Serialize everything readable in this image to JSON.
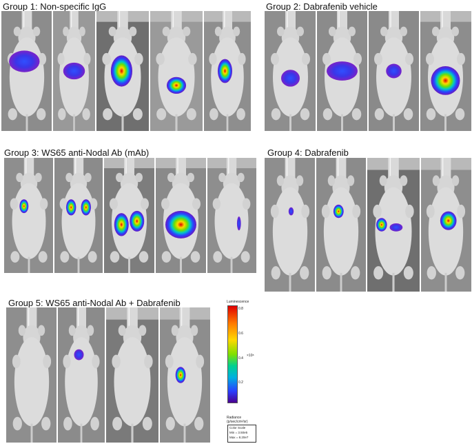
{
  "groups": [
    {
      "title": "Group 1: Non-specific IgG"
    },
    {
      "title": "Group 2: Dabrafenib vehicle"
    },
    {
      "title": "Group 3: WS65 anti-Nodal Ab (mAb)"
    },
    {
      "title": "Group 4: Dabrafenib"
    },
    {
      "title": "Group 5: WS65 anti-Nodal Ab + Dabrafenib"
    }
  ],
  "legend": {
    "title": "Luminescence",
    "ticks": [
      "0.8",
      "0.6",
      "0.4",
      "0.2"
    ],
    "multiplier": "×10⁸",
    "radiance_label": "Radiance",
    "radiance_units": "(p/sec/cm²/sr)",
    "color_scale_label": "Color Scale",
    "min": "Min = 3.50e5",
    "max": "Max = 8.20e7",
    "colors": [
      "#e00000",
      "#ff7a00",
      "#ffd800",
      "#7fe000",
      "#00d090",
      "#00b0e0",
      "#2a40ff",
      "#4a0090"
    ]
  }
}
